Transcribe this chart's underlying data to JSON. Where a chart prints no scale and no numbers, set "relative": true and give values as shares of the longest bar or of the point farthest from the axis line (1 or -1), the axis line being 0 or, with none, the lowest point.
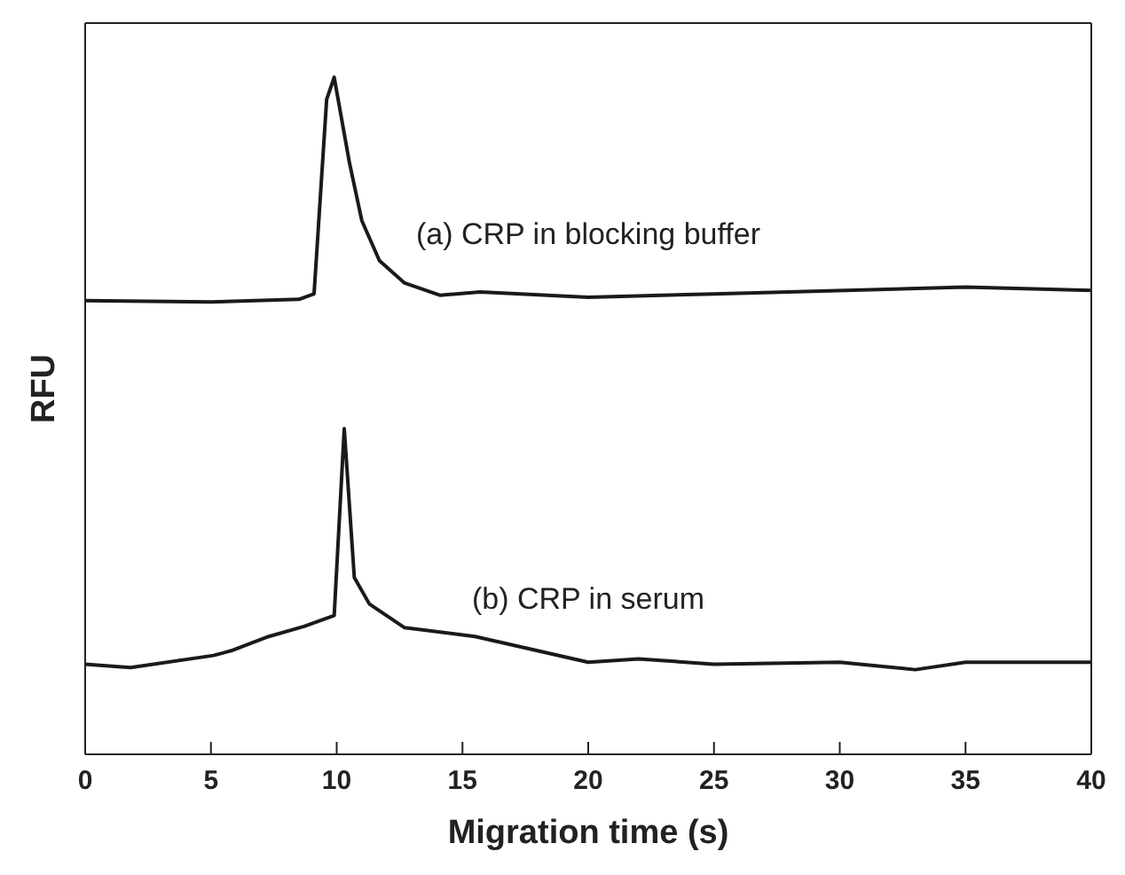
{
  "chart_data": {
    "type": "line",
    "relative": true,
    "xlabel": "Migration time (s)",
    "ylabel": "RFU",
    "xlim": [
      0,
      40
    ],
    "xticks": [
      0,
      5,
      10,
      15,
      20,
      25,
      30,
      35,
      40
    ],
    "marker": "none",
    "line_style": "solid",
    "series": [
      {
        "name": "(a) CRP in blocking buffer",
        "color": "#1a1a1a",
        "x": [
          0,
          5,
          8.5,
          9.1,
          9.6,
          9.9,
          10.5,
          11.0,
          11.7,
          12.7,
          14.1,
          15.7,
          20,
          25,
          35,
          40
        ],
        "values": [
          0.67,
          0.668,
          0.672,
          0.68,
          0.967,
          1.0,
          0.875,
          0.788,
          0.729,
          0.696,
          0.678,
          0.683,
          0.675,
          0.68,
          0.69,
          0.685
        ]
      },
      {
        "name": "(b) CRP in serum",
        "color": "#1a1a1a",
        "x": [
          0,
          1.8,
          5.1,
          5.8,
          7.3,
          8.7,
          9.9,
          10.3,
          10.7,
          11.3,
          12.7,
          15.5,
          20,
          22,
          25,
          30,
          33,
          35,
          40
        ],
        "values": [
          0.133,
          0.128,
          0.146,
          0.153,
          0.174,
          0.189,
          0.205,
          0.481,
          0.261,
          0.222,
          0.187,
          0.174,
          0.136,
          0.141,
          0.133,
          0.136,
          0.125,
          0.136,
          0.136
        ]
      }
    ]
  }
}
